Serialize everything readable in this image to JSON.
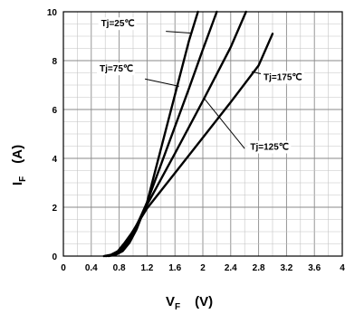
{
  "chart_data": {
    "type": "line",
    "title": "",
    "xlabel": {
      "main": "V",
      "sub": "F",
      "unit": "(V)"
    },
    "ylabel": {
      "main": "I",
      "sub": "F",
      "unit": "(A)"
    },
    "xlim": [
      0,
      4
    ],
    "ylim": [
      0,
      10
    ],
    "x_ticks": [
      0,
      0.4,
      0.8,
      1.2,
      1.6,
      2,
      2.4,
      2.8,
      3.2,
      3.6,
      4
    ],
    "x_tick_labels": [
      "0",
      "0.4",
      "0.8",
      "1.2",
      "1.6",
      "2",
      "2.4",
      "2.8",
      "3.2",
      "3.6",
      "4"
    ],
    "y_ticks": [
      0,
      2,
      4,
      6,
      8,
      10
    ],
    "y_tick_labels": [
      "0",
      "2",
      "4",
      "6",
      "8",
      "10"
    ],
    "grid": true,
    "series": [
      {
        "name": "Tj=25℃",
        "x": [
          0.65,
          0.75,
          0.85,
          0.95,
          1.05,
          1.2,
          1.4,
          1.6,
          1.8,
          1.93
        ],
        "y": [
          0,
          0.05,
          0.2,
          0.55,
          1.1,
          2.2,
          4.4,
          6.6,
          8.8,
          10
        ]
      },
      {
        "name": "Tj=75℃",
        "x": [
          0.62,
          0.72,
          0.82,
          0.92,
          1.02,
          1.2,
          1.4,
          1.6,
          1.8,
          2.0,
          2.2
        ],
        "y": [
          0,
          0.05,
          0.2,
          0.55,
          1.05,
          2.2,
          3.75,
          5.3,
          6.85,
          8.45,
          10
        ]
      },
      {
        "name": "Tj=125℃",
        "x": [
          0.6,
          0.7,
          0.8,
          0.9,
          1.0,
          1.2,
          1.6,
          2.0,
          2.4,
          2.62
        ],
        "y": [
          0,
          0.05,
          0.2,
          0.55,
          1.0,
          2.1,
          4.2,
          6.35,
          8.55,
          10
        ]
      },
      {
        "name": "Tj=175℃",
        "x": [
          0.58,
          0.68,
          0.78,
          0.88,
          0.98,
          1.2,
          1.6,
          2.0,
          2.4,
          2.8,
          3.0
        ],
        "y": [
          0,
          0.05,
          0.2,
          0.55,
          0.95,
          1.95,
          3.4,
          4.85,
          6.3,
          7.8,
          9.1
        ]
      }
    ],
    "annotations": [
      {
        "series": 0,
        "text": "Tj=25℃",
        "label_at": [
          0.54,
          9.4
        ],
        "leader_to": [
          1.47,
          9.2
        ],
        "pointer": [
          1.82,
          9.13
        ]
      },
      {
        "series": 1,
        "text": "Tj=75℃",
        "label_at": [
          0.52,
          7.55
        ],
        "leader_to": [
          1.17,
          7.25
        ],
        "pointer": [
          1.66,
          6.95
        ]
      },
      {
        "series": 2,
        "text": "Tj=125℃",
        "label_at": [
          2.68,
          4.35
        ],
        "leader_to": [
          2.6,
          4.4
        ],
        "pointer": [
          2.02,
          6.45
        ]
      },
      {
        "series": 3,
        "text": "Tj=175℃",
        "label_at": [
          2.87,
          7.2
        ],
        "leader_to": [
          2.85,
          7.45
        ],
        "pointer": [
          2.7,
          7.55
        ]
      }
    ]
  }
}
